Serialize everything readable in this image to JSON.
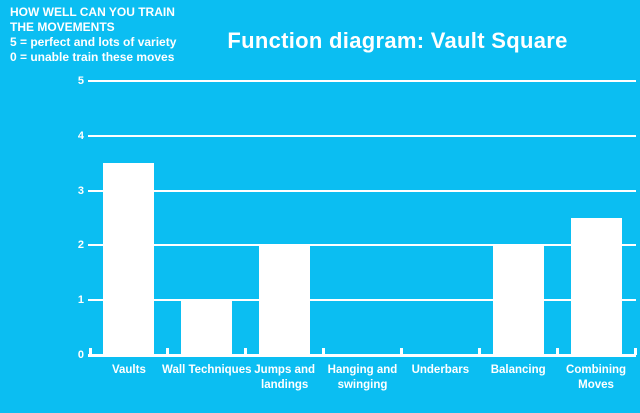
{
  "colors": {
    "background": "#0bbef2",
    "foreground": "#ffffff",
    "bar_color": "#ffffff"
  },
  "note": {
    "lines": [
      "HOW WELL CAN YOU TRAIN",
      "THE MOVEMENTS",
      "5 = perfect and lots of variety",
      "0 = unable train these moves"
    ]
  },
  "chart_data": {
    "type": "bar",
    "title": "Function diagram: Vault Square",
    "categories": [
      "Vaults",
      "Wall Techniques",
      "Jumps and landings",
      "Hanging and swinging",
      "Underbars",
      "Balancing",
      "Combining Moves"
    ],
    "values": [
      3.5,
      1,
      2,
      0,
      0,
      2,
      2.5
    ],
    "xlabel": "",
    "ylabel": "",
    "ylim": [
      0,
      5
    ],
    "yticks": [
      0,
      1,
      2,
      3,
      4,
      5
    ],
    "grid": true,
    "legend": "none",
    "annotations": [
      "HOW WELL CAN YOU TRAIN",
      "THE MOVEMENTS",
      "5 = perfect and lots of variety",
      "0 = unable train these moves"
    ]
  }
}
